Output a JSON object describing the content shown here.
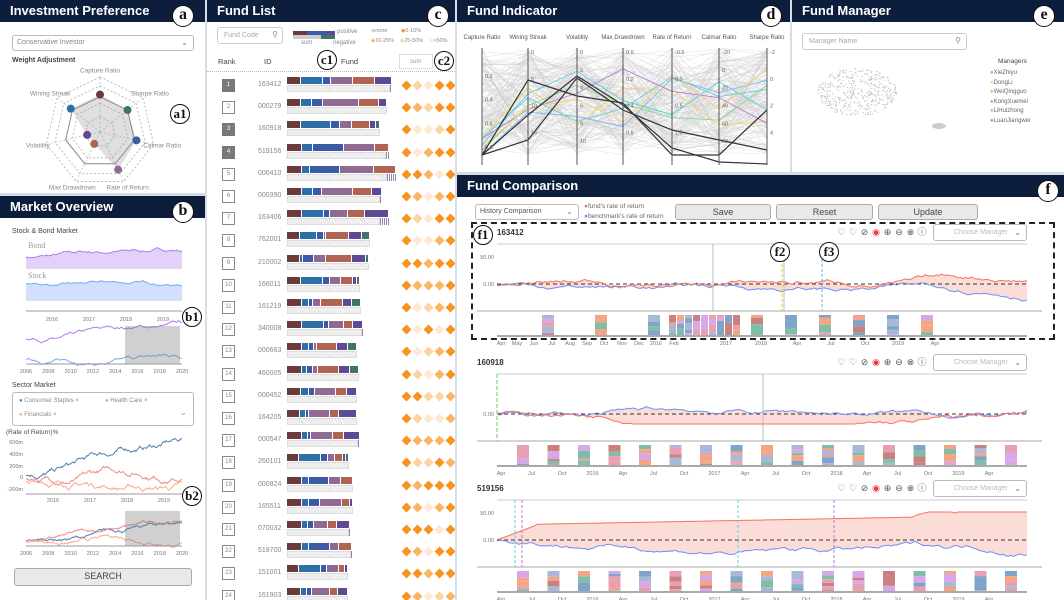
{
  "colors": {
    "header": "#0c1e3c",
    "fund": "#f4735f",
    "benchmark": "#6f8ff5",
    "bond": "#b07cf2",
    "stock": "#7ba7f7"
  },
  "investment_preference": {
    "title": "Investment Preference",
    "badge": "a",
    "radar_badge": "a1",
    "profile_select": "Conservative Investor",
    "weight_label": "Weight Adjustment",
    "radar": {
      "axes": [
        "Capture Ratio",
        "Sharpe Ratio",
        "Calmar Ratio",
        "Rate of Return",
        "Max Drawdrown",
        "Volatility",
        "Wining Streak"
      ],
      "weights": [
        0.85,
        0.8,
        0.85,
        0.95,
        0.3,
        0.3,
        0.85
      ],
      "dot_colors": [
        "#6b3a3a",
        "#3f7468",
        "#3b5ba5",
        "#8f6a93",
        "#b06452",
        "#5e4a94",
        "#2e6fa8"
      ]
    }
  },
  "market_overview": {
    "title": "Market Overview",
    "badge": "b",
    "badge1": "b1",
    "badge2": "b2",
    "stock_bond_label": "Stock & Bond Market",
    "bond_label": "Bond",
    "stock_label": "Stock",
    "detail_ticks": [
      "2016",
      "2017",
      "2018",
      "2019"
    ],
    "overview_ticks": [
      "2006",
      "2008",
      "2010",
      "2012",
      "2014",
      "2016",
      "2018",
      "2020"
    ],
    "sector_label": "Sector Market",
    "sectors": [
      {
        "name": "Consumer Staples",
        "color": "#4f7fb8"
      },
      {
        "name": "Health Care",
        "color": "#ef8a8a"
      },
      {
        "name": "Financials",
        "color": "#fca98a"
      }
    ],
    "tag_remove": "×",
    "sector_ylabel": "(Rate of Return)%",
    "sector_yticks": [
      "600m",
      "400m",
      "200m",
      "0",
      "-200m"
    ],
    "search_button": "SEARCH"
  },
  "fund_list": {
    "title": "Fund List",
    "badge": "c",
    "badge1": "c1",
    "badge2": "c2",
    "search_placeholder": "Fund Code",
    "legend": {
      "positive": "positive",
      "negative": "negative",
      "sum": "sum",
      "levels": [
        "none",
        "0-10%",
        "10-25%",
        "25-50%",
        ">50%"
      ]
    },
    "level_colors": [
      "#ffffff",
      "#f7931e",
      "#fbb461",
      "#fdd3a3",
      "#fee8d2"
    ],
    "segment_colors": [
      "#6b3a3a",
      "#2e6fa8",
      "#3b5ba5",
      "#8f6a93",
      "#b06452",
      "#5e4a94",
      "#3f7468"
    ],
    "columns": {
      "rank": "Rank",
      "id": "ID",
      "fund": "Fund",
      "sort": "sum"
    },
    "rows": [
      {
        "rank": "1",
        "id": "163412",
        "selected": true,
        "weights": [
          14,
          22,
          8,
          22,
          22,
          17
        ],
        "neg": 2,
        "levels": [
          1,
          3,
          4,
          1,
          1
        ]
      },
      {
        "rank": "2",
        "id": "000279",
        "selected": false,
        "weights": [
          14,
          11,
          11,
          36,
          20,
          8
        ],
        "neg": 0,
        "levels": [
          1,
          2,
          3,
          1,
          1
        ]
      },
      {
        "rank": "3",
        "id": "160918",
        "selected": true,
        "weights": [
          14,
          30,
          9,
          12,
          18,
          6,
          4
        ],
        "neg": 0,
        "levels": [
          1,
          4,
          4,
          3,
          1
        ]
      },
      {
        "rank": "4",
        "id": "519156",
        "selected": true,
        "weights": [
          15,
          11,
          31,
          31,
          14
        ],
        "neg": 3,
        "levels": [
          1,
          4,
          2,
          1,
          1
        ]
      },
      {
        "rank": "5",
        "id": "000410",
        "selected": false,
        "weights": [
          15,
          8,
          30,
          34,
          22
        ],
        "neg": 9,
        "levels": [
          1,
          1,
          2,
          4,
          1
        ]
      },
      {
        "rank": "6",
        "id": "000390",
        "selected": false,
        "weights": [
          15,
          11,
          9,
          31,
          19,
          10
        ],
        "neg": 2,
        "levels": [
          1,
          2,
          4,
          2,
          1
        ]
      },
      {
        "rank": "7",
        "id": "163406",
        "selected": false,
        "weights": [
          15,
          22,
          6,
          18,
          17,
          24
        ],
        "neg": 9,
        "levels": [
          1,
          3,
          4,
          1,
          1
        ]
      },
      {
        "rank": "8",
        "id": "762001",
        "selected": false,
        "weights": [
          13,
          17,
          7,
          2,
          23,
          13,
          8
        ],
        "neg": 0,
        "levels": [
          1,
          4,
          4,
          2,
          1
        ]
      },
      {
        "rank": "9",
        "id": "210002",
        "selected": false,
        "weights": [
          13,
          3,
          11,
          12,
          26,
          14,
          3
        ],
        "neg": 0,
        "levels": [
          1,
          1,
          2,
          1,
          1
        ]
      },
      {
        "rank": "10",
        "id": "166011",
        "selected": false,
        "weights": [
          14,
          22,
          7,
          11,
          12,
          4,
          3
        ],
        "neg": 0,
        "levels": [
          1,
          2,
          2,
          2,
          1
        ]
      },
      {
        "rank": "11",
        "id": "161219",
        "selected": false,
        "weights": [
          15,
          7,
          4,
          8,
          22,
          9,
          9
        ],
        "neg": 0,
        "levels": [
          1,
          4,
          3,
          2,
          1
        ]
      },
      {
        "rank": "12",
        "id": "340008",
        "selected": false,
        "weights": [
          15,
          22,
          5,
          15,
          9,
          10
        ],
        "neg": 1,
        "levels": [
          1,
          4,
          1,
          4,
          1
        ]
      },
      {
        "rank": "13",
        "id": "000663",
        "selected": false,
        "weights": [
          15,
          7,
          5,
          3,
          20,
          11,
          9
        ],
        "neg": 0,
        "levels": [
          1,
          4,
          3,
          2,
          1
        ]
      },
      {
        "rank": "14",
        "id": "460005",
        "selected": false,
        "weights": [
          15,
          5,
          6,
          5,
          21,
          11,
          9
        ],
        "neg": 0,
        "levels": [
          1,
          3,
          4,
          2,
          1
        ]
      },
      {
        "rank": "15",
        "id": "000452",
        "selected": false,
        "weights": [
          14,
          8,
          6,
          21,
          11,
          10
        ],
        "neg": 0,
        "levels": [
          1,
          1,
          3,
          3,
          2
        ]
      },
      {
        "rank": "16",
        "id": "164205",
        "selected": false,
        "weights": [
          13,
          6,
          3,
          21,
          9,
          18
        ],
        "neg": 0,
        "levels": [
          1,
          3,
          4,
          4,
          2
        ]
      },
      {
        "rank": "17",
        "id": "000547",
        "selected": false,
        "weights": [
          15,
          6,
          3,
          22,
          11,
          16
        ],
        "neg": 2,
        "levels": [
          1,
          2,
          2,
          2,
          1
        ]
      },
      {
        "rank": "18",
        "id": "260101",
        "selected": false,
        "weights": [
          12,
          22,
          7,
          7,
          8,
          3,
          3
        ],
        "neg": 0,
        "levels": [
          1,
          3,
          3,
          1,
          2
        ]
      },
      {
        "rank": "19",
        "id": "000824",
        "selected": false,
        "weights": [
          15,
          7,
          20,
          12,
          12
        ],
        "neg": 0,
        "levels": [
          1,
          2,
          1,
          1,
          1
        ]
      },
      {
        "rank": "20",
        "id": "165511",
        "selected": false,
        "weights": [
          15,
          7,
          11,
          22,
          8,
          3
        ],
        "neg": 0,
        "levels": [
          1,
          2,
          4,
          2,
          1
        ]
      },
      {
        "rank": "21",
        "id": "070032",
        "selected": false,
        "weights": [
          15,
          6,
          6,
          14,
          9,
          13
        ],
        "neg": 1,
        "levels": [
          1,
          1,
          1,
          4,
          1
        ]
      },
      {
        "rank": "22",
        "id": "519700",
        "selected": false,
        "weights": [
          15,
          7,
          21,
          9,
          13
        ],
        "neg": 1,
        "levels": [
          1,
          2,
          4,
          1,
          1
        ]
      },
      {
        "rank": "23",
        "id": "151001",
        "selected": false,
        "weights": [
          12,
          22,
          6,
          12,
          6,
          3
        ],
        "neg": 0,
        "levels": [
          1,
          1,
          2,
          1,
          1
        ]
      },
      {
        "rank": "24",
        "id": "161903",
        "selected": false,
        "weights": [
          14,
          6,
          5,
          18,
          8,
          10
        ],
        "neg": 0,
        "levels": [
          1,
          2,
          4,
          3,
          2
        ]
      }
    ]
  },
  "fund_indicator": {
    "title": "Fund Indicator",
    "badge": "d",
    "axes": [
      {
        "name": "Capture Ratio",
        "ticks": [
          "0.2",
          "0.4",
          "0.6",
          "0.8"
        ]
      },
      {
        "name": "Wining Streak",
        "ticks": [
          "0",
          "5",
          "10",
          "15"
        ]
      },
      {
        "name": "Volatility",
        "ticks": [
          "0",
          "2",
          "4",
          "6",
          "8",
          "10"
        ]
      },
      {
        "name": "Max Drawdrown",
        "ticks": [
          "0.0",
          "0.2",
          "0.4",
          "0.6"
        ]
      },
      {
        "name": "Rate of Return",
        "ticks": [
          "-0.5",
          "0.0",
          "0.5",
          "1.0"
        ]
      },
      {
        "name": "Calmar Ratio",
        "ticks": [
          "-20",
          "0",
          "20",
          "40",
          "60",
          "80"
        ]
      },
      {
        "name": "Sharpe Ratio",
        "ticks": [
          "-2",
          "0",
          "2",
          "4"
        ]
      }
    ]
  },
  "fund_manager": {
    "title": "Fund Manager",
    "badge": "e",
    "search_placeholder": "Manager Name",
    "legend_title": "Managers",
    "managers": [
      {
        "name": "XieZhiyu",
        "color": "#7fb3f5"
      },
      {
        "name": "DongLi",
        "color": "#f9d26a"
      },
      {
        "name": "WeiQingguo",
        "color": "#8fd49a"
      },
      {
        "name": "KongXuemei",
        "color": "#b89a8a"
      },
      {
        "name": "LiHuizhong",
        "color": "#5fd0e0"
      },
      {
        "name": "LuanJiangwei",
        "color": "#c072e0"
      }
    ]
  },
  "fund_comparison": {
    "title": "Fund Comparison",
    "badge": "f",
    "badge1": "f1",
    "badge2": "f2",
    "badge3": "f3",
    "mode_select": "History Comparison",
    "legend": {
      "fund": "fund's rate of return",
      "benchmark": "benchmark's rate of return"
    },
    "buttons": {
      "save": "Save",
      "reset": "Reset",
      "update": "Update"
    },
    "manager_placeholder": "Choose Manager",
    "icons": [
      "heart-icon",
      "heart-off-icon",
      "check-circle-icon",
      "compass-icon",
      "plus-circle-icon",
      "minus-circle-icon",
      "close-circle-icon",
      "info-circle-icon"
    ],
    "charts": [
      {
        "id": "163412",
        "yticks": [
          "50.00",
          "0.00"
        ],
        "xticks": [
          "Apr",
          "May",
          "Jun",
          "Jul",
          "Aug",
          "Sep",
          "Oct",
          "Nov",
          "Dec",
          "2016",
          "Feb",
          "2017",
          "2018",
          "Apr",
          "Jul",
          "Oct",
          "2019",
          "Apr"
        ]
      },
      {
        "id": "160918",
        "yticks": [
          "0.00"
        ],
        "xticks": [
          "Apr",
          "Jul",
          "Oct",
          "2016",
          "Apr",
          "Jul",
          "Oct",
          "2017",
          "Apr",
          "Jul",
          "Oct",
          "2018",
          "Apr",
          "Jul",
          "Oct",
          "2019",
          "Apr"
        ]
      },
      {
        "id": "519156",
        "yticks": [
          "50.00",
          "0.00"
        ],
        "xticks": [
          "Apr",
          "Jul",
          "Oct",
          "2016",
          "Apr",
          "Jul",
          "Oct",
          "2017",
          "Apr",
          "Jul",
          "Oct",
          "2018",
          "Apr",
          "Jul",
          "Oct",
          "2019",
          "Apr"
        ]
      }
    ]
  }
}
